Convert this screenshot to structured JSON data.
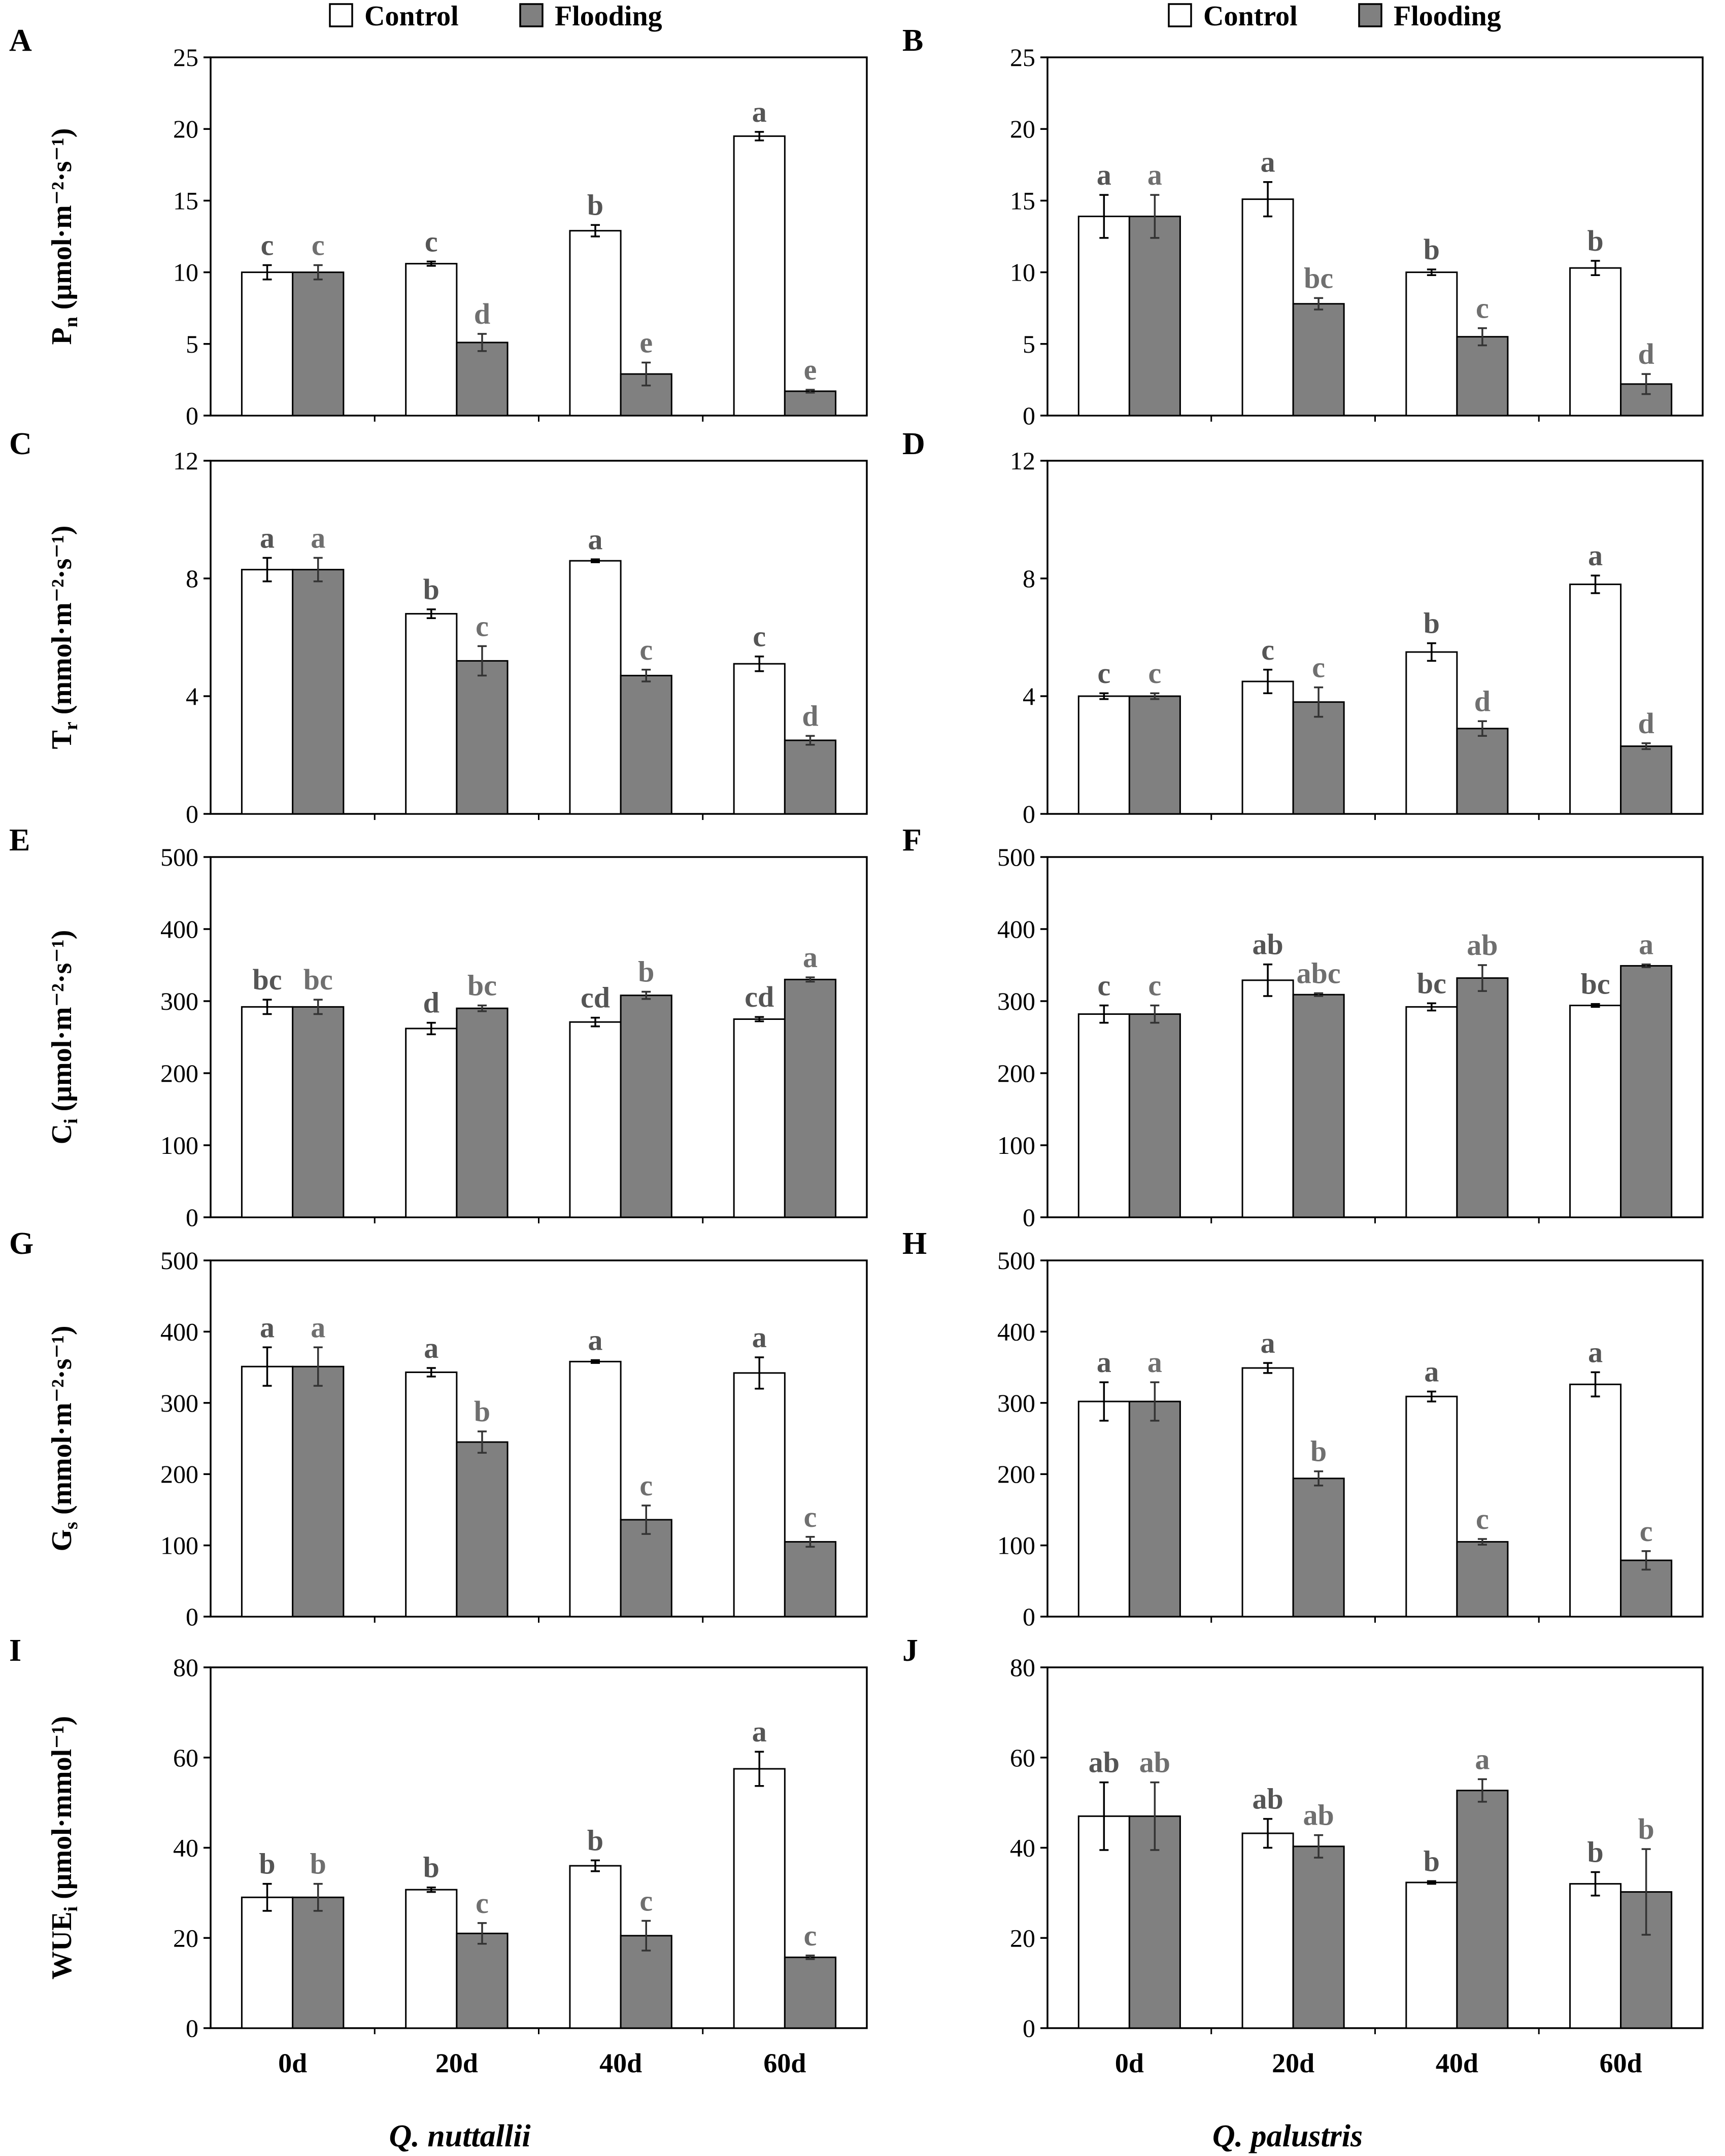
{
  "colors": {
    "control": "#ffffff",
    "flooding": "#808080",
    "axis": "#000000",
    "significance": "#6f6f6f"
  },
  "legend": {
    "left": [
      {
        "label": "Control"
      },
      {
        "label": "Flooding"
      }
    ],
    "right": [
      {
        "label": "Control"
      },
      {
        "label": "Flooding"
      }
    ]
  },
  "species": {
    "left": "Q. nuttallii",
    "right": "Q. palustris"
  },
  "chart_data": [
    {
      "type": "bar",
      "panel": "A",
      "species": "Q. nuttallii",
      "ylabel": {
        "main": "P",
        "sub": "n",
        "unit": " (μmol·m⁻²·s⁻¹)"
      },
      "categories": [
        "0d",
        "20d",
        "40d",
        "60d"
      ],
      "ylim": [
        0,
        25
      ],
      "yticks": [
        0,
        5,
        10,
        15,
        20,
        25
      ],
      "series": [
        {
          "name": "Control",
          "values": [
            10.0,
            10.6,
            12.9,
            19.5
          ],
          "errors": [
            0.5,
            0.15,
            0.4,
            0.3
          ],
          "letters": [
            "c",
            "c",
            "b",
            "a"
          ]
        },
        {
          "name": "Flooding",
          "values": [
            10.0,
            5.1,
            2.9,
            1.7
          ],
          "errors": [
            0.5,
            0.6,
            0.8,
            0.1
          ],
          "letters": [
            "c",
            "d",
            "e",
            "e"
          ]
        }
      ]
    },
    {
      "type": "bar",
      "panel": "B",
      "species": "Q. palustris",
      "ylabel": {
        "main": "",
        "sub": "",
        "unit": ""
      },
      "categories": [
        "0d",
        "20d",
        "40d",
        "60d"
      ],
      "ylim": [
        0,
        25
      ],
      "yticks": [
        0,
        5,
        10,
        15,
        20,
        25
      ],
      "series": [
        {
          "name": "Control",
          "values": [
            13.9,
            15.1,
            10.0,
            10.3
          ],
          "errors": [
            1.5,
            1.2,
            0.2,
            0.5
          ],
          "letters": [
            "a",
            "a",
            "b",
            "b"
          ]
        },
        {
          "name": "Flooding",
          "values": [
            13.9,
            7.8,
            5.5,
            2.2
          ],
          "errors": [
            1.5,
            0.4,
            0.6,
            0.7
          ],
          "letters": [
            "a",
            "bc",
            "c",
            "d"
          ]
        }
      ]
    },
    {
      "type": "bar",
      "panel": "C",
      "species": "Q. nuttallii",
      "ylabel": {
        "main": "T",
        "sub": "r",
        "unit": " (mmol·m⁻²·s⁻¹)"
      },
      "categories": [
        "0d",
        "20d",
        "40d",
        "60d"
      ],
      "ylim": [
        0,
        12
      ],
      "yticks": [
        0,
        4,
        8,
        12
      ],
      "series": [
        {
          "name": "Control",
          "values": [
            8.3,
            6.8,
            8.6,
            5.1
          ],
          "errors": [
            0.4,
            0.15,
            0.05,
            0.25
          ],
          "letters": [
            "a",
            "b",
            "a",
            "c"
          ]
        },
        {
          "name": "Flooding",
          "values": [
            8.3,
            5.2,
            4.7,
            2.5
          ],
          "errors": [
            0.4,
            0.5,
            0.2,
            0.15
          ],
          "letters": [
            "a",
            "c",
            "c",
            "d"
          ]
        }
      ]
    },
    {
      "type": "bar",
      "panel": "D",
      "species": "Q. palustris",
      "ylabel": {
        "main": "",
        "sub": "",
        "unit": ""
      },
      "categories": [
        "0d",
        "20d",
        "40d",
        "60d"
      ],
      "ylim": [
        0,
        12
      ],
      "yticks": [
        0,
        4,
        8,
        12
      ],
      "series": [
        {
          "name": "Control",
          "values": [
            4.0,
            4.5,
            5.5,
            7.8
          ],
          "errors": [
            0.1,
            0.4,
            0.3,
            0.3
          ],
          "letters": [
            "c",
            "c",
            "b",
            "a"
          ]
        },
        {
          "name": "Flooding",
          "values": [
            4.0,
            3.8,
            2.9,
            2.3
          ],
          "errors": [
            0.1,
            0.5,
            0.25,
            0.1
          ],
          "letters": [
            "c",
            "c",
            "d",
            "d"
          ]
        }
      ]
    },
    {
      "type": "bar",
      "panel": "E",
      "species": "Q. nuttallii",
      "ylabel": {
        "main": "C",
        "sub": "i",
        "unit": " (μmol·m⁻²·s⁻¹)"
      },
      "categories": [
        "0d",
        "20d",
        "40d",
        "60d"
      ],
      "ylim": [
        0,
        500
      ],
      "yticks": [
        0,
        100,
        200,
        300,
        400,
        500
      ],
      "series": [
        {
          "name": "Control",
          "values": [
            292,
            262,
            271,
            275
          ],
          "errors": [
            10,
            8,
            6,
            3
          ],
          "letters": [
            "bc",
            "d",
            "cd",
            "cd"
          ]
        },
        {
          "name": "Flooding",
          "values": [
            292,
            290,
            308,
            330
          ],
          "errors": [
            10,
            4,
            5,
            3
          ],
          "letters": [
            "bc",
            "bc",
            "b",
            "a"
          ]
        }
      ]
    },
    {
      "type": "bar",
      "panel": "F",
      "species": "Q. palustris",
      "ylabel": {
        "main": "",
        "sub": "",
        "unit": ""
      },
      "categories": [
        "0d",
        "20d",
        "40d",
        "60d"
      ],
      "ylim": [
        0,
        500
      ],
      "yticks": [
        0,
        100,
        200,
        300,
        400,
        500
      ],
      "series": [
        {
          "name": "Control",
          "values": [
            282,
            329,
            292,
            294
          ],
          "errors": [
            12,
            22,
            5,
            2
          ],
          "letters": [
            "c",
            "ab",
            "bc",
            "bc"
          ]
        },
        {
          "name": "Flooding",
          "values": [
            282,
            309,
            332,
            349
          ],
          "errors": [
            12,
            2,
            18,
            2
          ],
          "letters": [
            "c",
            "abc",
            "ab",
            "a"
          ]
        }
      ]
    },
    {
      "type": "bar",
      "panel": "G",
      "species": "Q. nuttallii",
      "ylabel": {
        "main": "G",
        "sub": "s",
        "unit": " (mmol·m⁻²·s⁻¹)"
      },
      "categories": [
        "0d",
        "20d",
        "40d",
        "60d"
      ],
      "ylim": [
        0,
        500
      ],
      "yticks": [
        0,
        100,
        200,
        300,
        400,
        500
      ],
      "series": [
        {
          "name": "Control",
          "values": [
            351,
            343,
            358,
            342
          ],
          "errors": [
            27,
            6,
            2,
            22
          ],
          "letters": [
            "a",
            "a",
            "a",
            "a"
          ]
        },
        {
          "name": "Flooding",
          "values": [
            351,
            245,
            136,
            105
          ],
          "errors": [
            27,
            15,
            20,
            7
          ],
          "letters": [
            "a",
            "b",
            "c",
            "c"
          ]
        }
      ]
    },
    {
      "type": "bar",
      "panel": "H",
      "species": "Q. palustris",
      "ylabel": {
        "main": "",
        "sub": "",
        "unit": ""
      },
      "categories": [
        "0d",
        "20d",
        "40d",
        "60d"
      ],
      "ylim": [
        0,
        500
      ],
      "yticks": [
        0,
        100,
        200,
        300,
        400,
        500
      ],
      "series": [
        {
          "name": "Control",
          "values": [
            302,
            349,
            309,
            326
          ],
          "errors": [
            27,
            7,
            7,
            17
          ],
          "letters": [
            "a",
            "a",
            "a",
            "a"
          ]
        },
        {
          "name": "Flooding",
          "values": [
            302,
            194,
            105,
            79
          ],
          "errors": [
            27,
            10,
            4,
            13
          ],
          "letters": [
            "a",
            "b",
            "c",
            "c"
          ]
        }
      ]
    },
    {
      "type": "bar",
      "panel": "I",
      "species": "Q. nuttallii",
      "ylabel": {
        "main": "WUE",
        "sub": "i",
        "unit": " (μmol·mmol⁻¹)"
      },
      "categories": [
        "0d",
        "20d",
        "40d",
        "60d"
      ],
      "ylim": [
        0,
        80
      ],
      "yticks": [
        0,
        20,
        40,
        60,
        80
      ],
      "series": [
        {
          "name": "Control",
          "values": [
            29,
            30.7,
            36,
            57.5
          ],
          "errors": [
            3,
            0.5,
            1.2,
            3.8
          ],
          "letters": [
            "b",
            "b",
            "b",
            "a"
          ]
        },
        {
          "name": "Flooding",
          "values": [
            29,
            21,
            20.5,
            15.7
          ],
          "errors": [
            3,
            2.3,
            3.3,
            0.4
          ],
          "letters": [
            "b",
            "c",
            "c",
            "c"
          ]
        }
      ]
    },
    {
      "type": "bar",
      "panel": "J",
      "species": "Q. palustris",
      "ylabel": {
        "main": "",
        "sub": "",
        "unit": ""
      },
      "categories": [
        "0d",
        "20d",
        "40d",
        "60d"
      ],
      "ylim": [
        0,
        80
      ],
      "yticks": [
        0,
        20,
        40,
        60,
        80
      ],
      "series": [
        {
          "name": "Control",
          "values": [
            47,
            43.2,
            32.3,
            32
          ],
          "errors": [
            7.5,
            3.2,
            0.3,
            2.6
          ],
          "letters": [
            "ab",
            "ab",
            "b",
            "b"
          ]
        },
        {
          "name": "Flooding",
          "values": [
            47,
            40.3,
            52.7,
            30.2
          ],
          "errors": [
            7.5,
            2.5,
            2.5,
            9.5
          ],
          "letters": [
            "ab",
            "ab",
            "a",
            "b"
          ]
        }
      ]
    }
  ]
}
